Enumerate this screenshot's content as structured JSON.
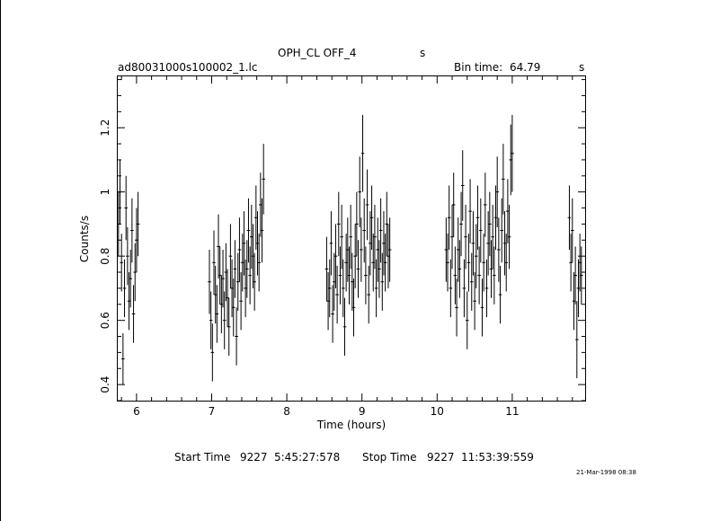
{
  "header": {
    "title": "OPH_CL OFF_4",
    "title_unit": "s",
    "filename": "ad80031000s100002_1.lc",
    "bin_time_label": "Bin time:",
    "bin_time_value": "64.79",
    "bin_time_unit": "s"
  },
  "footer": {
    "start_label": "Start Time",
    "start_day": "9227",
    "start_time": "5:45:27:578",
    "stop_label": "Stop Time",
    "stop_day": "9227",
    "stop_time": "11:53:39:559",
    "date_stamp": "21-Mar-1998 08:38"
  },
  "colors": {
    "background": "#ffffff",
    "ink": "#000000"
  },
  "chart_data": {
    "type": "scatter",
    "xlabel": "Time (hours)",
    "ylabel": "Counts/s",
    "xlim": [
      5.75,
      11.97
    ],
    "ylim": [
      0.35,
      1.36
    ],
    "x_ticks": [
      6,
      7,
      8,
      9,
      10,
      11
    ],
    "y_ticks": [
      0.4,
      0.6,
      0.8,
      1,
      1.2
    ],
    "y_tick_labels": [
      "0.4",
      "0.6",
      "0.8",
      "1",
      "1.2"
    ],
    "error_bars": true,
    "grid": false,
    "series": [
      {
        "x": [
          5.76,
          5.78,
          5.8,
          5.82,
          5.84,
          5.86,
          5.88,
          5.9,
          5.92,
          5.94,
          5.96,
          5.98,
          6.0,
          6.02
        ],
        "y": [
          0.9,
          1.0,
          0.78,
          0.48,
          0.7,
          0.95,
          0.8,
          0.66,
          0.73,
          0.88,
          0.62,
          0.75,
          0.85,
          0.9
        ],
        "err": [
          0.1,
          0.1,
          0.09,
          0.08,
          0.09,
          0.1,
          0.09,
          0.09,
          0.09,
          0.1,
          0.09,
          0.09,
          0.1,
          0.1
        ]
      },
      {
        "x": [
          6.97,
          6.99,
          7.01,
          7.03,
          7.05,
          7.07,
          7.09,
          7.11,
          7.13,
          7.15,
          7.17,
          7.19,
          7.21,
          7.23,
          7.25,
          7.27,
          7.29,
          7.31,
          7.33,
          7.35,
          7.37,
          7.39,
          7.41,
          7.43,
          7.45,
          7.47,
          7.49,
          7.51,
          7.53,
          7.55,
          7.57,
          7.59,
          7.61,
          7.63,
          7.65,
          7.67,
          7.69
        ],
        "y": [
          0.72,
          0.6,
          0.5,
          0.78,
          0.68,
          0.62,
          0.83,
          0.74,
          0.65,
          0.73,
          0.6,
          0.75,
          0.67,
          0.58,
          0.8,
          0.7,
          0.64,
          0.76,
          0.55,
          0.72,
          0.82,
          0.66,
          0.78,
          0.84,
          0.7,
          0.76,
          0.88,
          0.74,
          0.86,
          0.8,
          0.72,
          0.92,
          0.84,
          0.78,
          0.96,
          0.88,
          1.04
        ],
        "err": [
          0.1,
          0.09,
          0.09,
          0.1,
          0.09,
          0.09,
          0.1,
          0.09,
          0.09,
          0.09,
          0.09,
          0.09,
          0.09,
          0.09,
          0.1,
          0.09,
          0.09,
          0.09,
          0.09,
          0.09,
          0.1,
          0.09,
          0.09,
          0.1,
          0.09,
          0.09,
          0.1,
          0.09,
          0.1,
          0.1,
          0.09,
          0.1,
          0.1,
          0.09,
          0.1,
          0.1,
          0.11
        ]
      },
      {
        "x": [
          8.53,
          8.55,
          8.57,
          8.59,
          8.61,
          8.63,
          8.65,
          8.67,
          8.69,
          8.71,
          8.73,
          8.75,
          8.77,
          8.79,
          8.81,
          8.83,
          8.85,
          8.87,
          8.89,
          8.91,
          8.93,
          8.95,
          8.97,
          8.99,
          9.01,
          9.03,
          9.05,
          9.07,
          9.09,
          9.11,
          9.13,
          9.15,
          9.17,
          9.19,
          9.21,
          9.23,
          9.25,
          9.27,
          9.29,
          9.31,
          9.33,
          9.35,
          9.37
        ],
        "y": [
          0.76,
          0.66,
          0.7,
          0.84,
          0.62,
          0.72,
          0.8,
          0.68,
          0.9,
          0.74,
          0.86,
          0.7,
          0.58,
          0.78,
          0.82,
          0.74,
          0.86,
          0.72,
          0.64,
          0.8,
          0.9,
          0.76,
          1.0,
          0.82,
          1.12,
          0.88,
          0.74,
          0.96,
          0.68,
          0.84,
          0.92,
          0.78,
          0.86,
          0.7,
          0.82,
          0.76,
          0.88,
          0.72,
          0.84,
          0.78,
          0.9,
          0.8,
          0.82
        ],
        "err": [
          0.1,
          0.09,
          0.09,
          0.1,
          0.09,
          0.09,
          0.1,
          0.09,
          0.1,
          0.09,
          0.1,
          0.09,
          0.09,
          0.09,
          0.1,
          0.09,
          0.1,
          0.09,
          0.09,
          0.1,
          0.1,
          0.09,
          0.11,
          0.1,
          0.12,
          0.1,
          0.09,
          0.11,
          0.09,
          0.1,
          0.1,
          0.09,
          0.1,
          0.09,
          0.1,
          0.09,
          0.1,
          0.09,
          0.1,
          0.09,
          0.1,
          0.1,
          0.1
        ]
      },
      {
        "x": [
          10.12,
          10.14,
          10.16,
          10.18,
          10.2,
          10.22,
          10.24,
          10.26,
          10.28,
          10.3,
          10.32,
          10.34,
          10.36,
          10.38,
          10.4,
          10.42,
          10.44,
          10.46,
          10.48,
          10.5,
          10.52,
          10.54,
          10.56,
          10.58,
          10.6,
          10.62,
          10.64,
          10.66,
          10.68,
          10.7,
          10.72,
          10.74,
          10.76,
          10.78,
          10.8,
          10.82,
          10.84,
          10.86,
          10.88,
          10.9,
          10.92,
          10.94,
          10.96,
          10.98,
          11.0
        ],
        "y": [
          0.82,
          0.78,
          0.92,
          0.7,
          0.86,
          0.96,
          0.74,
          0.64,
          0.82,
          0.76,
          0.9,
          1.02,
          0.7,
          0.86,
          0.6,
          0.78,
          0.94,
          0.72,
          0.84,
          0.66,
          0.8,
          0.92,
          0.74,
          0.88,
          0.64,
          0.78,
          0.96,
          0.7,
          0.84,
          0.9,
          0.76,
          0.86,
          0.74,
          0.92,
          1.0,
          0.82,
          0.68,
          0.88,
          1.04,
          0.84,
          0.78,
          0.94,
          0.86,
          1.1,
          1.12
        ],
        "err": [
          0.1,
          0.09,
          0.1,
          0.09,
          0.1,
          0.1,
          0.09,
          0.09,
          0.1,
          0.09,
          0.1,
          0.11,
          0.09,
          0.1,
          0.09,
          0.09,
          0.1,
          0.09,
          0.1,
          0.09,
          0.1,
          0.1,
          0.09,
          0.1,
          0.09,
          0.09,
          0.1,
          0.09,
          0.1,
          0.1,
          0.09,
          0.1,
          0.09,
          0.1,
          0.11,
          0.1,
          0.09,
          0.1,
          0.11,
          0.1,
          0.09,
          0.1,
          0.1,
          0.11,
          0.12
        ]
      },
      {
        "x": [
          11.76,
          11.78,
          11.8,
          11.82,
          11.84,
          11.86,
          11.88,
          11.9,
          11.92
        ],
        "y": [
          0.92,
          0.78,
          0.88,
          0.66,
          0.74,
          0.54,
          0.7,
          0.78,
          0.74
        ],
        "err": [
          0.1,
          0.09,
          0.1,
          0.09,
          0.09,
          0.12,
          0.09,
          0.09,
          0.09
        ]
      }
    ]
  }
}
